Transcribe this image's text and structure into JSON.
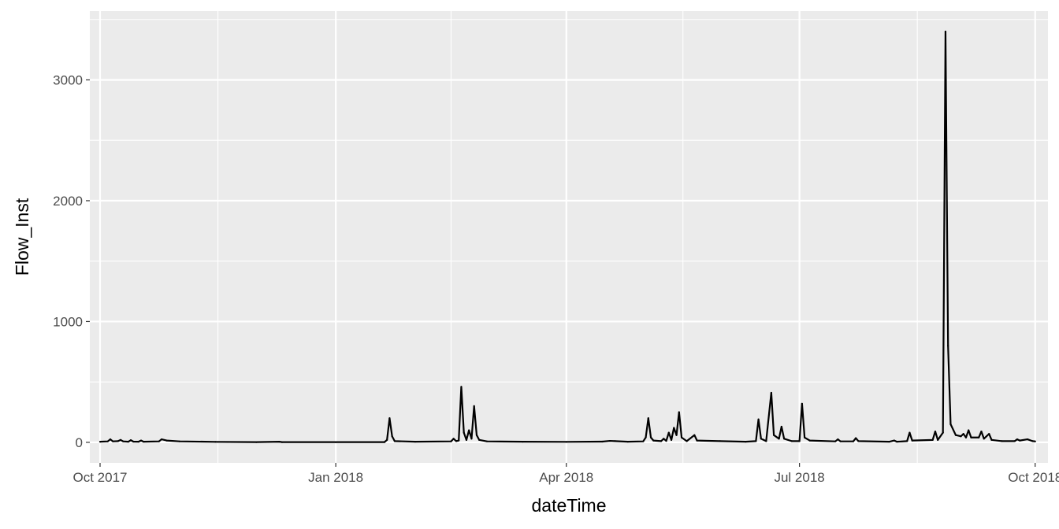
{
  "chart_data": {
    "type": "line",
    "title": "",
    "xlabel": "dateTime",
    "ylabel": "Flow_Inst",
    "grid": true,
    "legend": "none",
    "x_range": [
      "2017-09-27",
      "2018-10-06"
    ],
    "ylim": [
      -170,
      3570
    ],
    "x_ticks": [
      {
        "date": "2017-10-01",
        "label": "Oct 2017"
      },
      {
        "date": "2018-01-01",
        "label": "Jan 2018"
      },
      {
        "date": "2018-04-01",
        "label": "Apr 2018"
      },
      {
        "date": "2018-07-01",
        "label": "Jul 2018"
      },
      {
        "date": "2018-10-01",
        "label": "Oct 2018"
      }
    ],
    "y_ticks": [
      {
        "value": 0,
        "label": "0"
      },
      {
        "value": 1000,
        "label": "1000"
      },
      {
        "value": 2000,
        "label": "2000"
      },
      {
        "value": 3000,
        "label": "3000"
      }
    ],
    "colors": {
      "panel": "#ebebeb",
      "grid": "#ffffff",
      "line": "#000000"
    },
    "series": [
      {
        "color": "#000000",
        "points": [
          [
            "2017-10-01",
            5
          ],
          [
            "2017-10-04",
            8
          ],
          [
            "2017-10-05",
            25
          ],
          [
            "2017-10-06",
            8
          ],
          [
            "2017-10-08",
            10
          ],
          [
            "2017-10-09",
            20
          ],
          [
            "2017-10-10",
            8
          ],
          [
            "2017-10-12",
            5
          ],
          [
            "2017-10-13",
            18
          ],
          [
            "2017-10-14",
            6
          ],
          [
            "2017-10-16",
            5
          ],
          [
            "2017-10-17",
            15
          ],
          [
            "2017-10-18",
            5
          ],
          [
            "2017-10-24",
            8
          ],
          [
            "2017-10-25",
            25
          ],
          [
            "2017-10-27",
            15
          ],
          [
            "2017-11-01",
            8
          ],
          [
            "2017-11-15",
            4
          ],
          [
            "2017-12-01",
            2
          ],
          [
            "2017-12-10",
            5
          ],
          [
            "2017-12-11",
            2
          ],
          [
            "2018-01-01",
            2
          ],
          [
            "2018-01-20",
            2
          ],
          [
            "2018-01-21",
            20
          ],
          [
            "2018-01-22",
            200
          ],
          [
            "2018-01-23",
            50
          ],
          [
            "2018-01-24",
            10
          ],
          [
            "2018-02-01",
            5
          ],
          [
            "2018-02-15",
            8
          ],
          [
            "2018-02-16",
            30
          ],
          [
            "2018-02-17",
            10
          ],
          [
            "2018-02-18",
            15
          ],
          [
            "2018-02-19",
            460
          ],
          [
            "2018-02-20",
            80
          ],
          [
            "2018-02-21",
            20
          ],
          [
            "2018-02-22",
            100
          ],
          [
            "2018-02-23",
            30
          ],
          [
            "2018-02-24",
            300
          ],
          [
            "2018-02-25",
            60
          ],
          [
            "2018-02-26",
            20
          ],
          [
            "2018-03-01",
            8
          ],
          [
            "2018-03-15",
            5
          ],
          [
            "2018-04-01",
            4
          ],
          [
            "2018-04-15",
            6
          ],
          [
            "2018-04-18",
            12
          ],
          [
            "2018-04-20",
            10
          ],
          [
            "2018-04-25",
            5
          ],
          [
            "2018-05-01",
            8
          ],
          [
            "2018-05-02",
            40
          ],
          [
            "2018-05-03",
            200
          ],
          [
            "2018-05-04",
            40
          ],
          [
            "2018-05-05",
            15
          ],
          [
            "2018-05-08",
            10
          ],
          [
            "2018-05-09",
            30
          ],
          [
            "2018-05-10",
            12
          ],
          [
            "2018-05-11",
            80
          ],
          [
            "2018-05-12",
            20
          ],
          [
            "2018-05-13",
            120
          ],
          [
            "2018-05-14",
            60
          ],
          [
            "2018-05-15",
            250
          ],
          [
            "2018-05-16",
            40
          ],
          [
            "2018-05-18",
            10
          ],
          [
            "2018-05-21",
            60
          ],
          [
            "2018-05-22",
            15
          ],
          [
            "2018-05-31",
            10
          ],
          [
            "2018-06-10",
            5
          ],
          [
            "2018-06-14",
            10
          ],
          [
            "2018-06-15",
            190
          ],
          [
            "2018-06-16",
            30
          ],
          [
            "2018-06-18",
            10
          ],
          [
            "2018-06-20",
            410
          ],
          [
            "2018-06-21",
            60
          ],
          [
            "2018-06-23",
            30
          ],
          [
            "2018-06-24",
            130
          ],
          [
            "2018-06-25",
            30
          ],
          [
            "2018-06-28",
            10
          ],
          [
            "2018-07-01",
            10
          ],
          [
            "2018-07-02",
            320
          ],
          [
            "2018-07-03",
            40
          ],
          [
            "2018-07-05",
            15
          ],
          [
            "2018-07-15",
            8
          ],
          [
            "2018-07-16",
            25
          ],
          [
            "2018-07-17",
            8
          ],
          [
            "2018-07-22",
            8
          ],
          [
            "2018-07-23",
            35
          ],
          [
            "2018-07-24",
            10
          ],
          [
            "2018-08-05",
            5
          ],
          [
            "2018-08-07",
            15
          ],
          [
            "2018-08-08",
            5
          ],
          [
            "2018-08-12",
            10
          ],
          [
            "2018-08-13",
            80
          ],
          [
            "2018-08-14",
            15
          ],
          [
            "2018-08-22",
            20
          ],
          [
            "2018-08-23",
            90
          ],
          [
            "2018-08-24",
            20
          ],
          [
            "2018-08-26",
            80
          ],
          [
            "2018-08-27",
            3400
          ],
          [
            "2018-08-28",
            800
          ],
          [
            "2018-08-29",
            150
          ],
          [
            "2018-08-31",
            60
          ],
          [
            "2018-09-02",
            50
          ],
          [
            "2018-09-03",
            70
          ],
          [
            "2018-09-04",
            40
          ],
          [
            "2018-09-05",
            100
          ],
          [
            "2018-09-06",
            40
          ],
          [
            "2018-09-09",
            40
          ],
          [
            "2018-09-10",
            90
          ],
          [
            "2018-09-11",
            30
          ],
          [
            "2018-09-12",
            50
          ],
          [
            "2018-09-13",
            70
          ],
          [
            "2018-09-14",
            20
          ],
          [
            "2018-09-18",
            10
          ],
          [
            "2018-09-23",
            10
          ],
          [
            "2018-09-24",
            25
          ],
          [
            "2018-09-25",
            15
          ],
          [
            "2018-09-28",
            25
          ],
          [
            "2018-09-30",
            10
          ],
          [
            "2018-10-01",
            8
          ]
        ]
      }
    ]
  }
}
